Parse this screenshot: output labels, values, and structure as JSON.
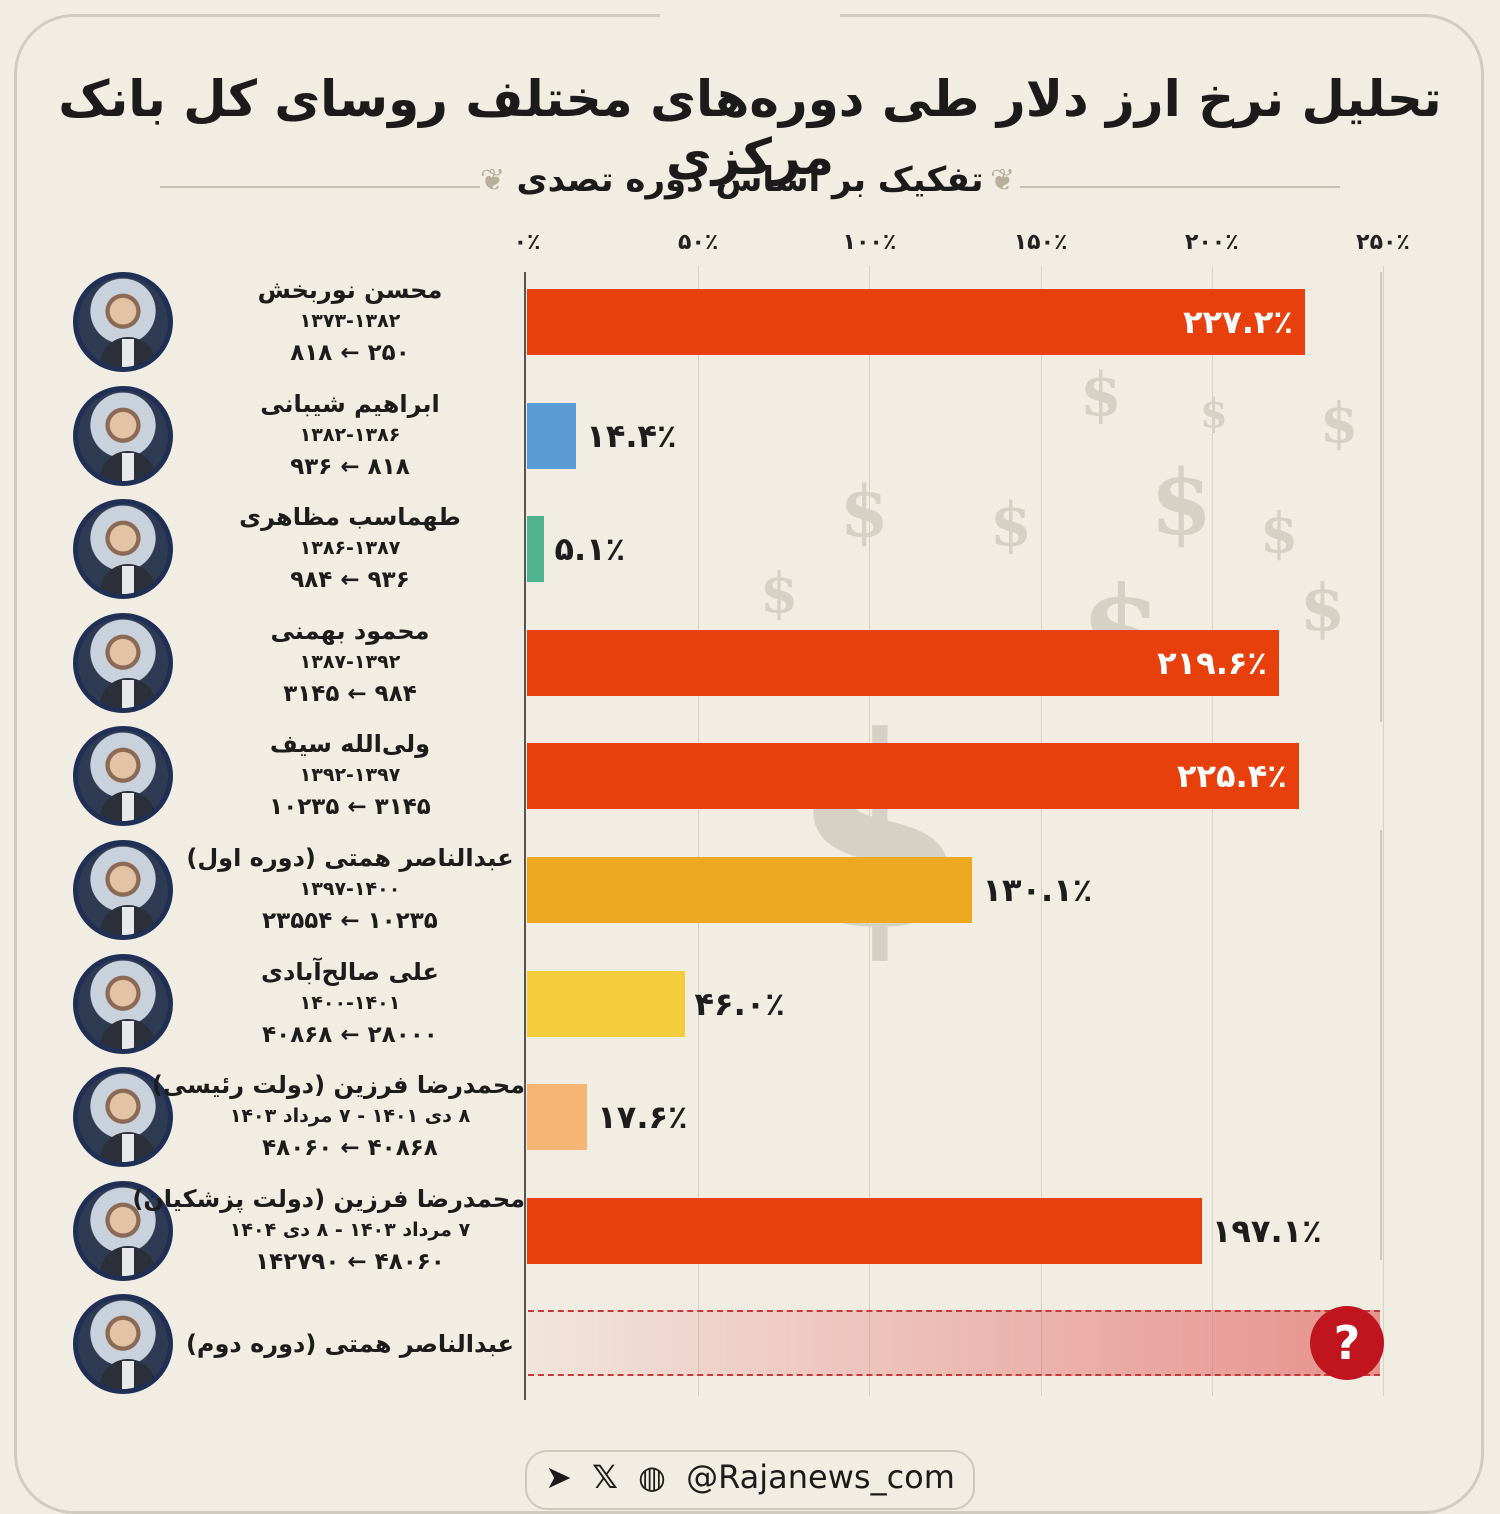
{
  "header": {
    "title": "تحلیل نرخ ارز دلار طی دوره‌های مختلف روسای کل بانک مرکزی",
    "subtitle": "تفکیک بر اساس دوره تصدی"
  },
  "chart_data": {
    "type": "bar",
    "orientation": "horizontal",
    "title": "تحلیل نرخ ارز دلار طی دوره‌های مختلف روسای کل بانک مرکزی",
    "subtitle": "تفکیک بر اساس دوره تصدی",
    "xlim": [
      0,
      250
    ],
    "x_ticks": [
      "۰٪",
      "۵۰٪",
      "۱۰۰٪",
      "۱۵۰٪",
      "۲۰۰٪",
      "۲۵۰٪"
    ],
    "x_tick_values": [
      0,
      50,
      100,
      150,
      200,
      250
    ],
    "grid": true,
    "categories": [
      "محسن نوربخش",
      "ابراهیم شیبانی",
      "طهماسب مظاهری",
      "محمود بهمنی",
      "ولی‌الله سیف",
      "عبدالناصر همتی (دوره اول)",
      "علی صالح‌آبادی",
      "محمدرضا فرزین (دولت رئیسی)",
      "محمدرضا فرزین (دولت پزشکیان)",
      "عبدالناصر همتی (دوره دوم)"
    ],
    "values": [
      227.2,
      14.4,
      5.1,
      219.6,
      225.4,
      130.1,
      46.0,
      17.6,
      197.1,
      null
    ],
    "value_labels": [
      "۲۲۷.۲٪",
      "۱۴.۴٪",
      "۵.۱٪",
      "۲۱۹.۶٪",
      "۲۲۵.۴٪",
      "۱۳۰.۱٪",
      "۴۶.۰٪",
      "۱۷.۶٪",
      "۱۹۷.۱٪",
      "؟"
    ],
    "periods": [
      "۱۳۷۳-۱۳۸۲",
      "۱۳۸۲-۱۳۸۶",
      "۱۳۸۶-۱۳۸۷",
      "۱۳۸۷-۱۳۹۲",
      "۱۳۹۲-۱۳۹۷",
      "۱۳۹۷-۱۴۰۰",
      "۱۴۰۰-۱۴۰۱",
      "۸ دی ۱۴۰۱ - ۷ مرداد ۱۴۰۳",
      "۷ مرداد ۱۴۰۳ - ۸ دی ۱۴۰۴",
      ""
    ],
    "rate_ranges": [
      "۲۵۰ ← ۸۱۸",
      "۸۱۸ ← ۹۳۶",
      "۹۳۶ ← ۹۸۴",
      "۹۸۴ ← ۳۱۴۵",
      "۳۱۴۵ ← ۱۰۲۳۵",
      "۱۰۲۳۵ ← ۲۳۵۵۴",
      "۲۸۰۰۰ ← ۴۰۸۶۸",
      "۴۰۸۶۸ ← ۴۸۰۶۰",
      "۴۸۰۶۰ ← ۱۴۲۷۹۰",
      ""
    ],
    "colors": [
      "#e8400c",
      "#5b9bd5",
      "#4fb38f",
      "#e8400c",
      "#e8400c",
      "#eda821",
      "#f2cc3b",
      "#f6b574",
      "#e8400c",
      "#e05555"
    ]
  },
  "footer": {
    "handle": "@Rajanews_com",
    "icons": [
      "telegram-icon",
      "x-icon",
      "globe-icon"
    ]
  }
}
